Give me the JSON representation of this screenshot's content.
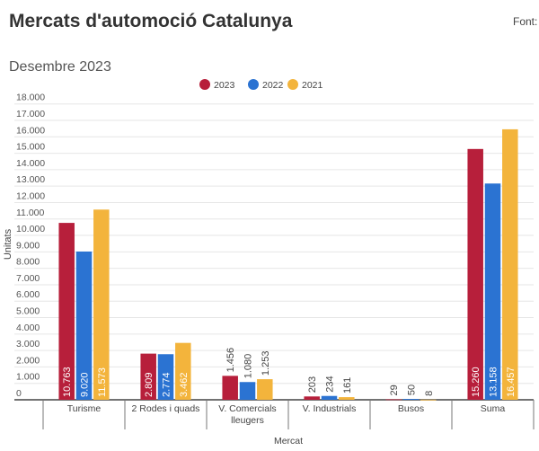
{
  "header": {
    "title": "Mercats d'automoció Catalunya",
    "source_label": "Font:",
    "subtitle": "Desembre 2023"
  },
  "colors": {
    "2023": "#b71f3b",
    "2022": "#2b73d2",
    "2021": "#f3b43c"
  },
  "chart_data": {
    "type": "bar",
    "title": "Mercats d'automoció Catalunya",
    "subtitle": "Desembre 2023",
    "xlabel": "Mercat",
    "ylabel": "Unitats",
    "ylim": [
      0,
      18000
    ],
    "yticks": [
      "0",
      "1.000",
      "2.000",
      "3.000",
      "4.000",
      "5.000",
      "6.000",
      "7.000",
      "8.000",
      "9.000",
      "10.000",
      "11.000",
      "12.000",
      "13.000",
      "14.000",
      "15.000",
      "16.000",
      "17.000",
      "18.000"
    ],
    "grid": true,
    "legend": "top-center",
    "categories": [
      "Turisme",
      "2 Rodes i quads",
      "V. Comercials lleugers",
      "V. Industrials",
      "Busos",
      "Suma"
    ],
    "series": [
      {
        "name": "2023",
        "values": [
          10763,
          2809,
          1456,
          203,
          29,
          15260
        ],
        "labels": [
          "10.763",
          "2.809",
          "1.456",
          "203",
          "29",
          "15.260"
        ]
      },
      {
        "name": "2022",
        "values": [
          9020,
          2774,
          1080,
          234,
          50,
          13158
        ],
        "labels": [
          "9.020",
          "2.774",
          "1.080",
          "234",
          "50",
          "13.158"
        ]
      },
      {
        "name": "2021",
        "values": [
          11573,
          3462,
          1253,
          161,
          8,
          16457
        ],
        "labels": [
          "11.573",
          "3.462",
          "1.253",
          "161",
          "8",
          "16.457"
        ]
      }
    ]
  }
}
